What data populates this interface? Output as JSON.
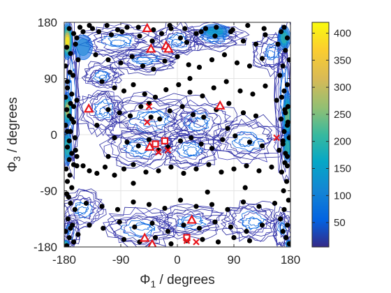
{
  "chart_data": {
    "type": "scatter",
    "title": "",
    "xlabel": {
      "symbol": "Φ",
      "subscript": "1",
      "unit": " / degrees"
    },
    "ylabel": {
      "symbol": "Φ",
      "subscript": "3",
      "unit": " / degrees"
    },
    "xlim": [
      -180,
      180
    ],
    "ylim": [
      -180,
      180
    ],
    "xticks": [
      -180,
      -90,
      0,
      90,
      180
    ],
    "yticks": [
      -180,
      -90,
      0,
      90,
      180
    ],
    "xtick_labels": [
      "-180",
      "-90",
      "0",
      "90",
      "180"
    ],
    "ytick_labels": [
      "-180",
      "-90",
      "0",
      "90",
      "180"
    ],
    "grid": true,
    "colorbar": {
      "colormap": "parula",
      "range": [
        5,
        420
      ],
      "ticks": [
        50,
        100,
        150,
        200,
        250,
        300,
        350,
        400
      ],
      "tick_labels": [
        "50",
        "100",
        "150",
        "200",
        "250",
        "300",
        "350",
        "400"
      ]
    },
    "contour_regions": [
      {
        "x": -170,
        "y": 60,
        "rx": 14,
        "ry": 120
      },
      {
        "x": 170,
        "y": 60,
        "rx": 14,
        "ry": 120
      },
      {
        "x": -170,
        "y": -155,
        "rx": 12,
        "ry": 25
      },
      {
        "x": 168,
        "y": -150,
        "rx": 14,
        "ry": 30
      },
      {
        "x": -95,
        "y": 150,
        "rx": 60,
        "ry": 25
      },
      {
        "x": 0,
        "y": 150,
        "rx": 40,
        "ry": 25
      },
      {
        "x": 60,
        "y": 155,
        "rx": 45,
        "ry": 20
      },
      {
        "x": -55,
        "y": 120,
        "rx": 50,
        "ry": 18
      },
      {
        "x": 150,
        "y": 130,
        "rx": 30,
        "ry": 30
      },
      {
        "x": -40,
        "y": 25,
        "rx": 75,
        "ry": 40
      },
      {
        "x": 35,
        "y": 20,
        "rx": 50,
        "ry": 35
      },
      {
        "x": -60,
        "y": -20,
        "rx": 55,
        "ry": 35
      },
      {
        "x": 20,
        "y": -25,
        "rx": 45,
        "ry": 30
      },
      {
        "x": 110,
        "y": -10,
        "rx": 55,
        "ry": 35
      },
      {
        "x": -120,
        "y": 40,
        "rx": 35,
        "ry": 35
      },
      {
        "x": -150,
        "y": -120,
        "rx": 35,
        "ry": 30
      },
      {
        "x": -60,
        "y": -150,
        "rx": 60,
        "ry": 30
      },
      {
        "x": 20,
        "y": -140,
        "rx": 55,
        "ry": 25
      },
      {
        "x": 120,
        "y": -140,
        "rx": 45,
        "ry": 30
      },
      {
        "x": -120,
        "y": 95,
        "rx": 30,
        "ry": 20
      }
    ],
    "hotspots": [
      {
        "x": -175,
        "y": 150,
        "rx": 8,
        "ry": 30,
        "level": 0.95
      },
      {
        "x": -175,
        "y": 40,
        "rx": 7,
        "ry": 28,
        "level": 0.7
      },
      {
        "x": -175,
        "y": -20,
        "rx": 7,
        "ry": 30,
        "level": 0.55
      },
      {
        "x": 175,
        "y": 30,
        "rx": 7,
        "ry": 40,
        "level": 0.6
      },
      {
        "x": 175,
        "y": -20,
        "rx": 7,
        "ry": 25,
        "level": 0.45
      },
      {
        "x": 170,
        "y": 155,
        "rx": 10,
        "ry": 20,
        "level": 0.5
      },
      {
        "x": 60,
        "y": 165,
        "rx": 25,
        "ry": 12,
        "level": 0.35
      },
      {
        "x": -150,
        "y": 140,
        "rx": 15,
        "ry": 20,
        "level": 0.3
      },
      {
        "x": -178,
        "y": -175,
        "rx": 6,
        "ry": 6,
        "level": 0.45
      },
      {
        "x": 178,
        "y": -175,
        "rx": 6,
        "ry": 6,
        "level": 0.45
      }
    ],
    "series": [
      {
        "marker": "black-circle",
        "x": [
          -172,
          -165,
          -160,
          -155,
          -176,
          -170,
          -162,
          -150,
          -140,
          -178,
          -171,
          -166,
          -158,
          -175,
          -168,
          -160,
          -176,
          -172,
          -165,
          -178,
          -170,
          -163,
          -175,
          -168,
          -172,
          -177,
          -165,
          -160,
          -171,
          -175,
          -168,
          -176,
          -170,
          -163,
          -174,
          -167,
          -178,
          -172,
          -165,
          -158,
          -176,
          -170,
          -175,
          -168,
          -172,
          -162,
          -178,
          -175,
          -170,
          -165,
          -160,
          -173,
          170,
          165,
          175,
          160,
          172,
          178,
          168,
          163,
          175,
          170,
          158,
          176,
          172,
          165,
          175,
          170,
          178,
          168,
          162,
          175,
          171,
          166,
          174,
          169,
          177,
          170,
          164,
          175,
          168,
          173,
          178,
          166,
          171,
          176,
          168,
          172,
          175,
          -125,
          -105,
          -95,
          -80,
          -60,
          -40,
          -25,
          -10,
          5,
          15,
          30,
          45,
          60,
          85,
          105,
          125,
          140,
          -130,
          -110,
          -90,
          -72,
          -55,
          -38,
          -20,
          0,
          18,
          35,
          55,
          75,
          95,
          115,
          135,
          -120,
          -100,
          -85,
          -70,
          -52,
          -35,
          -18,
          2,
          20,
          40,
          58,
          78,
          100,
          120,
          140,
          -110,
          -92,
          -75,
          -58,
          -42,
          -28,
          -12,
          8,
          25,
          42,
          62,
          82,
          105,
          125,
          -100,
          -80,
          -62,
          -45,
          -30,
          -15,
          5,
          22,
          38,
          55,
          72,
          92,
          115,
          135,
          -150,
          -140,
          -128,
          -115,
          -100,
          -85,
          -70,
          -50,
          -30,
          -10,
          10,
          30,
          50,
          70,
          90,
          110,
          130,
          150,
          -145,
          -120,
          -95,
          -70,
          -45,
          -20,
          5,
          30,
          55,
          80,
          105,
          130,
          155,
          -140,
          -118,
          -92,
          -68,
          -40,
          -15,
          10,
          35,
          60,
          85,
          110,
          135,
          -85,
          -60,
          -35,
          -10,
          15,
          40,
          65,
          90,
          115,
          -128,
          -110,
          -70,
          -45,
          20,
          48,
          80,
          108,
          -135,
          -112,
          -88,
          -62,
          -38,
          -12,
          12,
          38,
          62,
          88,
          112,
          138
        ],
        "y": [
          170,
          162,
          155,
          172,
          140,
          130,
          145,
          165,
          175,
          110,
          100,
          95,
          120,
          75,
          65,
          55,
          40,
          30,
          45,
          15,
          5,
          -5,
          -20,
          -30,
          -40,
          -55,
          -48,
          -35,
          -65,
          -75,
          -85,
          -95,
          -110,
          -120,
          -135,
          -145,
          -155,
          -165,
          -172,
          -160,
          -178,
          -150,
          5,
          25,
          -10,
          -25,
          60,
          85,
          50,
          20,
          -50,
          -100,
          172,
          165,
          155,
          145,
          135,
          120,
          110,
          95,
          80,
          70,
          55,
          45,
          35,
          25,
          15,
          5,
          -5,
          -15,
          -25,
          -35,
          -45,
          -60,
          -75,
          -90,
          -105,
          -120,
          -135,
          -145,
          -155,
          -165,
          -175,
          60,
          40,
          20,
          -10,
          -30,
          -50,
          165,
          160,
          168,
          172,
          158,
          150,
          162,
          170,
          155,
          148,
          162,
          170,
          158,
          165,
          150,
          145,
          160,
          128,
          120,
          115,
          125,
          110,
          105,
          118,
          125,
          112,
          108,
          120,
          128,
          115,
          110,
          122,
          85,
          75,
          70,
          80,
          65,
          60,
          72,
          80,
          68,
          62,
          75,
          85,
          70,
          65,
          78,
          40,
          35,
          30,
          45,
          28,
          25,
          38,
          45,
          32,
          28,
          40,
          50,
          35,
          30,
          -5,
          -12,
          -18,
          -8,
          -25,
          -20,
          -10,
          -5,
          -15,
          -22,
          -8,
          -2,
          -12,
          -18,
          -50,
          -58,
          -62,
          -52,
          -65,
          -55,
          -48,
          -60,
          -58,
          -52,
          -62,
          -55,
          -48,
          -60,
          -55,
          -50,
          -58,
          -52,
          -110,
          -115,
          -120,
          -108,
          -112,
          -118,
          -105,
          -115,
          -112,
          -120,
          -108,
          -115,
          -110,
          -145,
          -150,
          -140,
          -148,
          -142,
          -155,
          -145,
          -150,
          -140,
          -148,
          -155,
          -145,
          -168,
          -172,
          -165,
          -175,
          -170,
          -168,
          -172,
          -165,
          -170,
          15,
          -35,
          -78,
          50,
          90,
          -92,
          10,
          -85,
          170,
          175,
          165,
          172,
          168,
          175,
          170,
          165,
          172,
          168,
          175,
          170
        ]
      },
      {
        "marker": "red-triangle",
        "x": [
          -48,
          -42,
          -18,
          -14,
          -141,
          -44,
          68,
          23,
          -52,
          -40
        ],
        "y": [
          170,
          137,
          142,
          137,
          41,
          -20,
          46,
          -137,
          -166,
          -176
        ]
      },
      {
        "marker": "red-square",
        "x": [
          -35,
          -20,
          15
        ],
        "y": [
          -15,
          -10,
          -165
        ]
      },
      {
        "marker": "red-x",
        "x": [
          -45,
          -48,
          -30,
          -15,
          158,
          15,
          30
        ],
        "y": [
          45,
          20,
          -28,
          -25,
          -5,
          -170,
          -172
        ]
      }
    ]
  }
}
